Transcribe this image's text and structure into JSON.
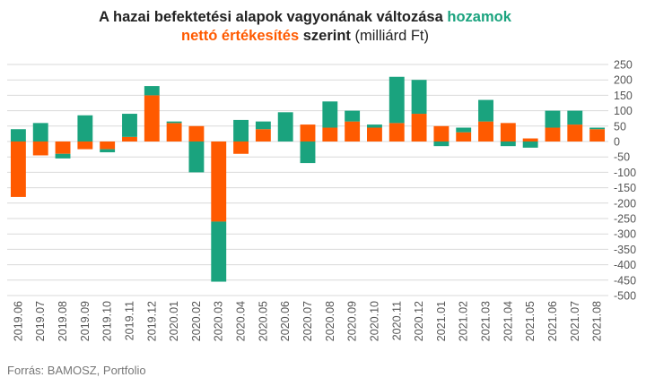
{
  "title": {
    "line1_pre": "A hazai befektetési alapok vagyonának változása",
    "line1_green": "hozamok",
    "line2_orange": "nettó értékesítés",
    "line2_mid": "szerint",
    "line2_unit": "(milliárd Ft)"
  },
  "source": "Forrás: BAMOSZ, Portfolio",
  "colors": {
    "hozamok": "#1aa37e",
    "netto_ertekesites": "#ff5a00",
    "grid": "#d9d9d9",
    "axis_text": "#555555"
  },
  "chart_data": {
    "type": "bar",
    "stacked": true,
    "categories": [
      "2019.06",
      "2019.07",
      "2019.08",
      "2019.09",
      "2019.10",
      "2019.11",
      "2019.12",
      "2020.01",
      "2020.02",
      "2020.03",
      "2020.04",
      "2020.05",
      "2020.06",
      "2020.07",
      "2020.08",
      "2020.09",
      "2020.10",
      "2020.11",
      "2020.12",
      "2021.01",
      "2021.02",
      "2021.03",
      "2021.04",
      "2021.05",
      "2021.06",
      "2021.07",
      "2021.08"
    ],
    "series": [
      {
        "key": "netto_ertekesites",
        "values": [
          -180,
          -45,
          -40,
          -25,
          -25,
          15,
          150,
          60,
          50,
          -260,
          -40,
          40,
          0,
          55,
          45,
          65,
          45,
          60,
          90,
          50,
          30,
          65,
          60,
          10,
          45,
          55,
          40
        ]
      },
      {
        "key": "hozamok",
        "values": [
          40,
          60,
          -15,
          85,
          -10,
          75,
          30,
          5,
          -100,
          -195,
          70,
          25,
          95,
          -70,
          85,
          35,
          10,
          150,
          110,
          -15,
          15,
          70,
          -15,
          -20,
          55,
          45,
          5
        ]
      }
    ],
    "ylim": [
      -500,
      250
    ],
    "yticks": [
      250,
      200,
      150,
      100,
      50,
      0,
      -50,
      -100,
      -150,
      -200,
      -250,
      -300,
      -350,
      -400,
      -450,
      -500
    ],
    "xlabel": "",
    "ylabel": "",
    "legend": "none",
    "grid": true,
    "y_axis_position": "right",
    "x_label_rotation": "vertical"
  }
}
